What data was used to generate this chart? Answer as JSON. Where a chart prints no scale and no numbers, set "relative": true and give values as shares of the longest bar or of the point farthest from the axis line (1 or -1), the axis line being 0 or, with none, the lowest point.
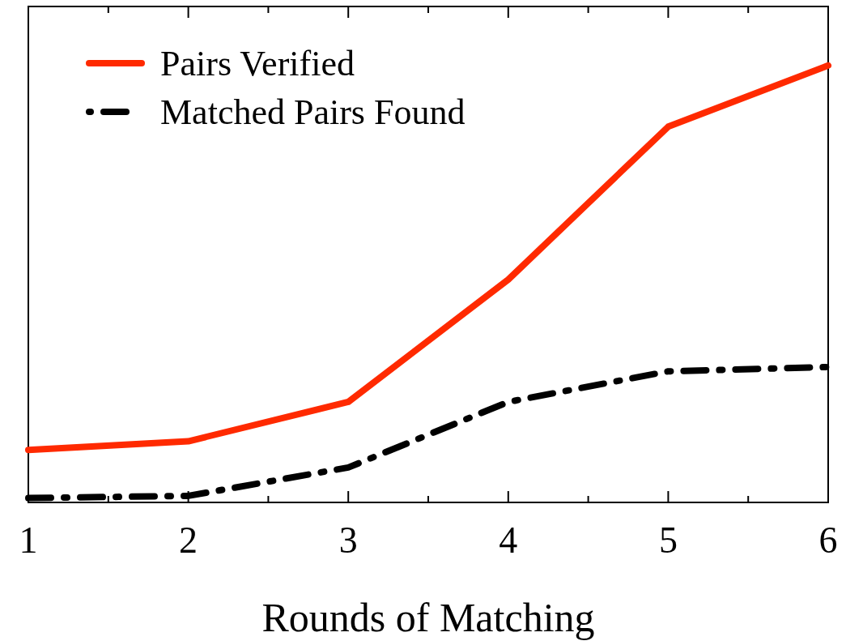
{
  "chart_data": {
    "type": "line",
    "xlabel": "Rounds of Matching",
    "x": [
      1,
      2,
      3,
      4,
      5,
      6
    ],
    "xlim": [
      1,
      6
    ],
    "xticks": [
      1,
      2,
      3,
      4,
      5,
      6
    ],
    "relative": true,
    "legend": "top left",
    "series": [
      {
        "name": "Pairs Verified",
        "color": "#ff2a00",
        "line_style": "solid",
        "values": [
          0.12,
          0.14,
          0.23,
          0.51,
          0.86,
          1
        ]
      },
      {
        "name": "Matched Pairs Found",
        "color": "#000000",
        "line_style": "dashed",
        "values": [
          0.01,
          0.015,
          0.08,
          0.23,
          0.3,
          0.31
        ]
      }
    ]
  }
}
